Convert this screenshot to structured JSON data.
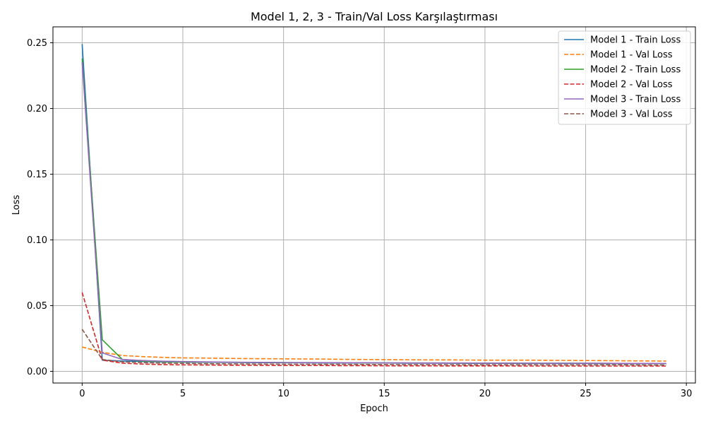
{
  "chart_data": {
    "type": "line",
    "title": "Model 1, 2, 3 - Train/Val Loss Karşılaştırması",
    "xlabel": "Epoch",
    "ylabel": "Loss",
    "xlim": [
      -1.45,
      30.45
    ],
    "ylim": [
      -0.0089,
      0.2621
    ],
    "xticks": [
      0,
      5,
      10,
      15,
      20,
      25,
      30
    ],
    "xtick_labels": [
      "0",
      "5",
      "10",
      "15",
      "20",
      "25",
      "30"
    ],
    "yticks": [
      0.0,
      0.05,
      0.1,
      0.15,
      0.2,
      0.25
    ],
    "ytick_labels": [
      "0.00",
      "0.05",
      "0.10",
      "0.15",
      "0.20",
      "0.25"
    ],
    "grid": true,
    "legend": "top-right",
    "x": [
      0,
      1,
      2,
      3,
      4,
      5,
      6,
      7,
      8,
      9,
      10,
      11,
      12,
      13,
      14,
      15,
      16,
      17,
      18,
      19,
      20,
      21,
      22,
      23,
      24,
      25,
      26,
      27,
      28,
      29
    ],
    "series": [
      {
        "name": "Model 1 - Train Loss",
        "color": "#1f77b4",
        "style": "solid",
        "values": [
          0.249,
          0.0085,
          0.0078,
          0.0075,
          0.0072,
          0.007,
          0.0069,
          0.0068,
          0.0067,
          0.0066,
          0.0065,
          0.0065,
          0.0064,
          0.0064,
          0.0063,
          0.0063,
          0.0062,
          0.0062,
          0.0062,
          0.0061,
          0.0061,
          0.0061,
          0.006,
          0.006,
          0.006,
          0.006,
          0.0059,
          0.0059,
          0.0059,
          0.0059
        ]
      },
      {
        "name": "Model 1 - Val Loss",
        "color": "#ff7f0e",
        "style": "dashed",
        "values": [
          0.0185,
          0.0145,
          0.012,
          0.0112,
          0.0106,
          0.0102,
          0.0101,
          0.0099,
          0.0097,
          0.0096,
          0.0095,
          0.0094,
          0.0093,
          0.0091,
          0.009,
          0.0089,
          0.0088,
          0.0087,
          0.0087,
          0.0086,
          0.0085,
          0.0085,
          0.0085,
          0.0084,
          0.0083,
          0.0082,
          0.0081,
          0.008,
          0.0079,
          0.0078
        ]
      },
      {
        "name": "Model 2 - Train Loss",
        "color": "#2ca02c",
        "style": "solid",
        "values": [
          0.238,
          0.024,
          0.009,
          0.0078,
          0.0074,
          0.0071,
          0.007,
          0.0069,
          0.0068,
          0.0067,
          0.0066,
          0.0066,
          0.0065,
          0.0065,
          0.0064,
          0.0064,
          0.0063,
          0.0063,
          0.0063,
          0.0062,
          0.0062,
          0.0062,
          0.0061,
          0.0061,
          0.0061,
          0.0061,
          0.006,
          0.006,
          0.006,
          0.006
        ]
      },
      {
        "name": "Model 2 - Val Loss",
        "color": "#d62728",
        "style": "dashed",
        "values": [
          0.06,
          0.0085,
          0.0062,
          0.0055,
          0.0051,
          0.0049,
          0.0048,
          0.0047,
          0.0046,
          0.0045,
          0.0044,
          0.0044,
          0.0044,
          0.0043,
          0.0043,
          0.0042,
          0.0042,
          0.0042,
          0.0041,
          0.0041,
          0.0041,
          0.0041,
          0.004,
          0.004,
          0.004,
          0.004,
          0.004,
          0.004,
          0.004,
          0.004
        ]
      },
      {
        "name": "Model 3 - Train Loss",
        "color": "#9467bd",
        "style": "solid",
        "values": [
          0.235,
          0.014,
          0.009,
          0.0082,
          0.0077,
          0.0074,
          0.0072,
          0.007,
          0.0069,
          0.0068,
          0.0067,
          0.0066,
          0.0066,
          0.0065,
          0.0065,
          0.0064,
          0.0064,
          0.0063,
          0.0063,
          0.0063,
          0.0062,
          0.0062,
          0.0062,
          0.0061,
          0.0061,
          0.0061,
          0.0061,
          0.006,
          0.006,
          0.006
        ]
      },
      {
        "name": "Model 3 - Val Loss",
        "color": "#8c564b",
        "style": "dashed",
        "values": [
          0.032,
          0.009,
          0.0072,
          0.0066,
          0.0062,
          0.006,
          0.0058,
          0.0057,
          0.0056,
          0.0055,
          0.0054,
          0.0054,
          0.0053,
          0.0053,
          0.0052,
          0.0052,
          0.0051,
          0.0051,
          0.0051,
          0.005,
          0.005,
          0.005,
          0.005,
          0.0049,
          0.0049,
          0.0049,
          0.0049,
          0.0049,
          0.0048,
          0.0048
        ]
      }
    ]
  }
}
